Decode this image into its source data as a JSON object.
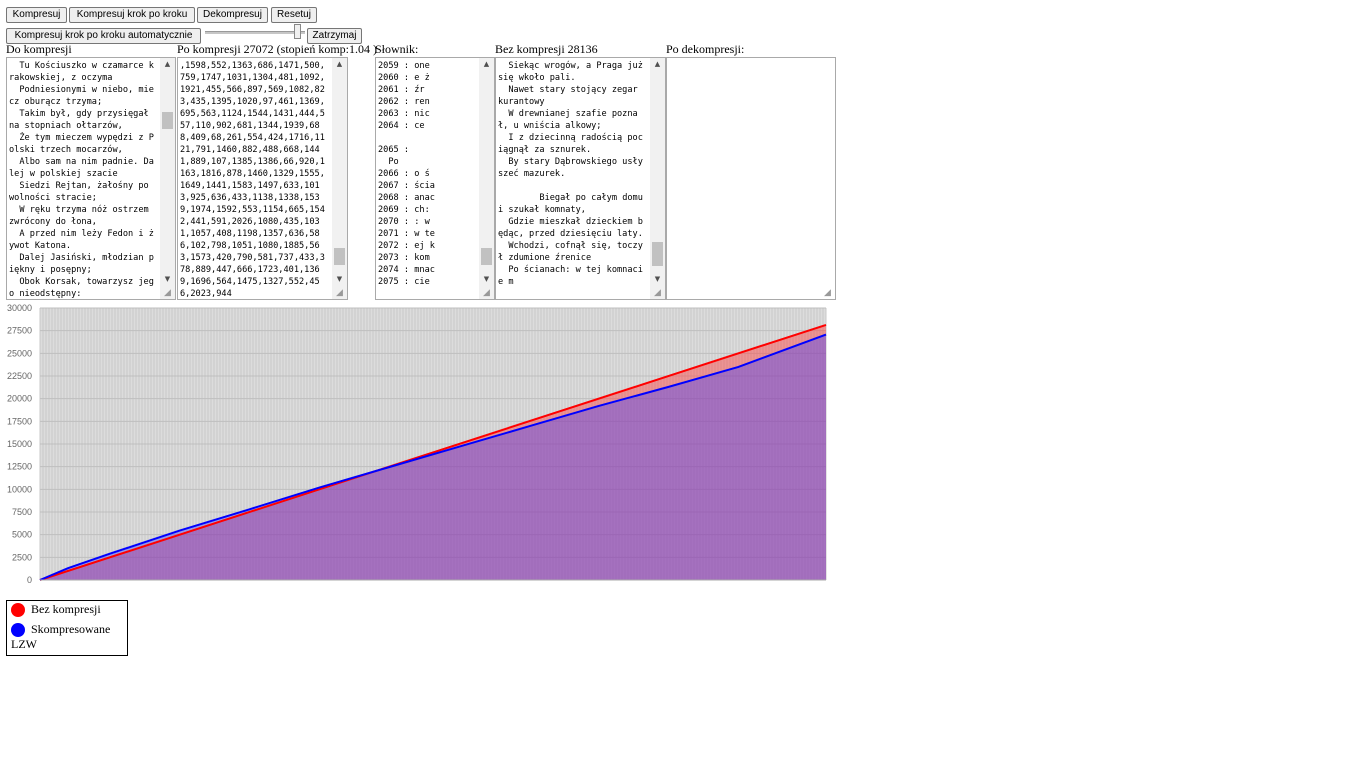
{
  "toolbar": {
    "compress_label": "Kompresuj",
    "compress_step_label": "Kompresuj krok po kroku",
    "decompress_label": "Dekompresuj",
    "reset_label": "Resetuj",
    "compress_auto_label": "Kompresuj krok po kroku automatycznie",
    "stop_label": "Zatrzymaj",
    "speed_slider_value": 0.95
  },
  "panels": {
    "input": {
      "label": "Do kompresji",
      "text": "  Tu Kościuszko w czamarce krakowskiej, z oczyma\n  Podniesionymi w niebo, miecz oburącz trzyma;\n  Takim był, gdy przysięgał na stopniach ołtarzów,\n  Że tym mieczem wypędzi z Polski trzech mocarzów,\n  Albo sam na nim padnie. Dalej w polskiej szacie\n  Siedzi Rejtan, żałośny po wolności stracie;\n  W ręku trzyma nóż ostrzem zwrócony do łona,\n  A przed nim leży Fedon i żywot Katona.\n  Dalej Jasiński, młodzian piękny i posępny;\n  Obok Korsak, towarzysz jego nieodstępny:"
    },
    "compressed": {
      "label": "Po kompresji 27072 (stopień komp:1.04 )",
      "text": ",1598,552,1363,686,1471,500,759,1747,1031,1304,481,1092,1921,455,566,897,569,1082,823,435,1395,1020,97,461,1369,695,563,1124,1544,1431,444,557,110,902,681,1344,1939,688,409,68,261,554,424,1716,1121,791,1460,882,488,668,1441,889,107,1385,1386,66,920,1163,1816,878,1460,1329,1555,1649,1441,1583,1497,633,1013,925,636,433,1138,1338,1539,1974,1592,553,1154,665,1542,441,591,2026,1080,435,1031,1057,408,1198,1357,636,586,102,798,1051,1080,1885,563,1573,420,790,581,737,433,378,889,447,666,1723,401,1369,1696,564,1475,1327,552,456,2023,944"
    },
    "dictionary": {
      "label": "Słownik:",
      "text": "2059 : one\n2060 : e ż\n2061 : źr\n2062 : ren\n2063 : nic\n2064 : ce\n\n2065 :\n  Po\n2066 : o ś\n2067 : ścia\n2068 : anac\n2069 : ch:\n2070 : : w\n2071 : w te\n2072 : ej k\n2073 : kom\n2074 : mnac\n2075 : cie"
    },
    "uncompressed": {
      "label": "Bez kompresji 28136",
      "text": "  Siekąc wrogów, a Praga już się wkoło pali.\n  Nawet stary stojący zegar kurantowy\n  W drewnianej szafie poznał, u wniścia alkowy;\n  I z dziecinną radością pociągnął za sznurek.\n  By stary Dąbrowskiego usłyszeć mazurek.\n\n        Biegał po całym domu i szukał komnaty,\n  Gdzie mieszkał dzieckiem będąc, przed dziesięciu laty.\n  Wchodzi, cofnął się, toczył zdumione źrenice\n  Po ścianach: w tej komnacie m"
    },
    "decompressed": {
      "label": "Po dekompresji:",
      "text": ""
    }
  },
  "chart_data": {
    "type": "area",
    "xlim": [
      0,
      28136
    ],
    "ylim": [
      0,
      30000
    ],
    "yticks": [
      0,
      2500,
      5000,
      7500,
      10000,
      12500,
      15000,
      17500,
      20000,
      22500,
      25000,
      27500,
      30000
    ],
    "grid": true,
    "series": [
      {
        "name": "Bez kompresji",
        "color": "#ff0000",
        "x": [
          0,
          28136
        ],
        "y": [
          0,
          28136
        ]
      },
      {
        "name": "Skompresowane LZW",
        "color": "#0000ff",
        "x": [
          0,
          1000,
          2500,
          5000,
          7500,
          10000,
          12500,
          15000,
          17500,
          20000,
          22500,
          25000,
          28136
        ],
        "y": [
          0,
          1300,
          2900,
          5450,
          7800,
          10200,
          12450,
          14700,
          16950,
          19200,
          21300,
          23500,
          27072
        ]
      }
    ],
    "legend_position": "bottom-left"
  },
  "legend": {
    "items": [
      {
        "label": "Bez kompresji",
        "color": "#ff0000"
      },
      {
        "label": "Skompresowane LZW",
        "color": "#0000ff"
      }
    ]
  }
}
